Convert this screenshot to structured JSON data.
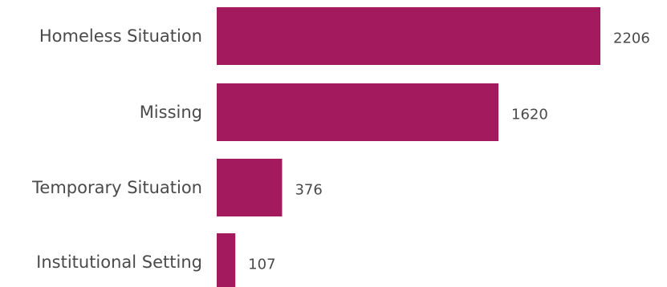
{
  "chart_data": {
    "type": "bar",
    "orientation": "horizontal",
    "categories": [
      "Homeless Situation",
      "Missing",
      "Temporary Situation",
      "Institutional Setting"
    ],
    "values": [
      2206,
      1620,
      376,
      107
    ],
    "data_labels": [
      "2206",
      "1620",
      "376",
      "107"
    ],
    "bar_color": "#a31a5e",
    "xlim": [
      0,
      2206
    ],
    "grid": false,
    "legend": "none"
  }
}
